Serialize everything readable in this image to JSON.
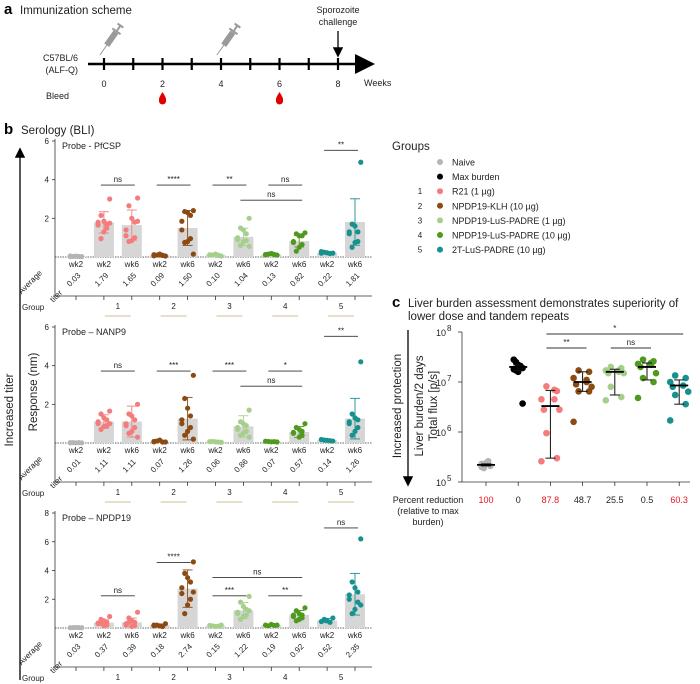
{
  "panel_a": {
    "letter": "a",
    "title": "Immunization scheme",
    "strain_line1": "C57BL/6",
    "strain_line2": "(ALF-Q)",
    "challenge_line1": "Sporozoite",
    "challenge_line2": "challenge",
    "weeks_label": "Weeks",
    "week_ticks": [
      "0",
      "2",
      "4",
      "6",
      "8"
    ],
    "bleed_label": "Bleed",
    "bleed_weeks": [
      2,
      6
    ],
    "immunization_weeks": [
      0,
      4
    ],
    "challenge_week": 8,
    "icons": {
      "immunization": "syringe-icon",
      "bleed": "blood-drop-icon"
    },
    "colors": {
      "syringe": "#9a9a9a",
      "drop": "#e00000"
    }
  },
  "panel_b": {
    "letter": "b",
    "title": "Serology (BLI)",
    "y_arrow_label": "Increased titer",
    "ylabel": "Response (nm)",
    "avg_label_line1": "Average",
    "avg_label_line2": "titer",
    "group_label": "Group",
    "category_labels": [
      "wk2",
      "wk2",
      "wk6",
      "wk2",
      "wk6",
      "wk2",
      "wk6",
      "wk2",
      "wk6",
      "wk2",
      "wk6"
    ],
    "category_groups": [
      0,
      1,
      1,
      2,
      2,
      3,
      3,
      4,
      4,
      5,
      5
    ],
    "group_numbers": [
      "1",
      "2",
      "3",
      "4",
      "5"
    ]
  },
  "legend": {
    "title": "Groups",
    "items": [
      {
        "num": "",
        "label": "Naive",
        "color": "#b5b5b5"
      },
      {
        "num": "",
        "label": "Max burden",
        "color": "#000000"
      },
      {
        "num": "1",
        "label": "R21 (1 µg)",
        "color": "#f47c7c"
      },
      {
        "num": "2",
        "label": "NPDP19-KLH (10 µg)",
        "color": "#8b4a12"
      },
      {
        "num": "3",
        "label": "NPDP19-LuS-PADRE (1 µg)",
        "color": "#a6cf8c"
      },
      {
        "num": "4",
        "label": "NPDP19-LuS-PADRE (10 µg)",
        "color": "#4f9a1e"
      },
      {
        "num": "5",
        "label": "2T-LuS-PADRE (10 µg)",
        "color": "#16918f"
      }
    ]
  },
  "panel_c": {
    "letter": "c",
    "title_line1": "Liver burden assessment demonstrates superiority of",
    "title_line2": "lower dose and tandem repeats",
    "arrow_label": "Increased protection",
    "ylabel_line1": "Liver burden/2 days",
    "ylabel_line2": "Total flux [p/s]",
    "reduction_label_line1": "Percent reduction",
    "reduction_label_line2": "(relative to max",
    "reduction_label_line3": "burden)",
    "highlight_color": "#e8141b"
  },
  "chart_data": [
    {
      "type": "bar+scatter",
      "title": "Probe - PfCSP",
      "ylabel": "Response (nm)",
      "ylim": [
        0,
        6
      ],
      "yticks": [
        "2",
        "4",
        "6"
      ],
      "color_index": [
        0,
        2,
        2,
        3,
        3,
        4,
        4,
        5,
        5,
        6,
        6
      ],
      "average_titer": [
        "0.03",
        "1.79",
        "1.65",
        "0.09",
        "1.50",
        "0.10",
        "1.04",
        "0.13",
        "0.82",
        "0.22",
        "1.81"
      ],
      "means": [
        0.03,
        1.79,
        1.65,
        0.09,
        1.5,
        0.1,
        1.04,
        0.13,
        0.82,
        0.22,
        1.81
      ],
      "sd": [
        0,
        0.55,
        0.78,
        0.05,
        0.9,
        0.05,
        0.45,
        0.04,
        0.3,
        0.06,
        1.2
      ],
      "points": [
        [
          0.02,
          0.03,
          0.04,
          0.03,
          0.05,
          0.02,
          0.03,
          0.04
        ],
        [
          3.0,
          2.15,
          1.85,
          1.7,
          1.8,
          1.65,
          1.5,
          1.3,
          0.95,
          1.75
        ],
        [
          3.05,
          2.65,
          2.0,
          1.8,
          1.4,
          1.1,
          1.0,
          0.85,
          0.8,
          1.85
        ],
        [
          0.05,
          0.1,
          0.15,
          0.08,
          0.12,
          0.06,
          0.09,
          0.1
        ],
        [
          2.4,
          2.35,
          2.3,
          2.15,
          1.85,
          1.4,
          0.95,
          0.8,
          0.75,
          0.15
        ],
        [
          0.05,
          0.1,
          0.15,
          0.08,
          0.12,
          0.1,
          0.09
        ],
        [
          2.0,
          1.5,
          1.4,
          1.2,
          1.0,
          0.9,
          0.85,
          0.8,
          0.6,
          0.55
        ],
        [
          0.1,
          0.15,
          0.18,
          0.12,
          0.13,
          0.1,
          0.14
        ],
        [
          1.25,
          1.2,
          1.1,
          1.1,
          0.8,
          0.75,
          0.65,
          0.5,
          0.3
        ],
        [
          0.2,
          0.25,
          0.22,
          0.18,
          0.28,
          0.2
        ],
        [
          4.9,
          1.7,
          1.6,
          1.3,
          1.3,
          1.2,
          0.8,
          0.75,
          0.5
        ]
      ],
      "significance": [
        {
          "from": 1,
          "to": 2,
          "label": "ns",
          "tier": 1
        },
        {
          "from": 3,
          "to": 4,
          "label": "****",
          "tier": 1
        },
        {
          "from": 5,
          "to": 6,
          "label": "**",
          "tier": 1
        },
        {
          "from": 7,
          "to": 8,
          "label": "ns",
          "tier": 1
        },
        {
          "from": 6,
          "to": 8,
          "label": "ns",
          "tier": 2
        },
        {
          "from": 9,
          "to": 10,
          "label": "**",
          "tier": 3
        }
      ]
    },
    {
      "type": "bar+scatter",
      "title": "Probe – NANP9",
      "ylabel": "Response (nm)",
      "ylim": [
        0,
        6
      ],
      "yticks": [
        "2",
        "4",
        "6"
      ],
      "color_index": [
        0,
        2,
        2,
        3,
        3,
        4,
        4,
        5,
        5,
        6,
        6
      ],
      "average_titer": [
        "0.01",
        "1.11",
        "1.11",
        "0.07",
        "1.26",
        "0.06",
        "0.86",
        "0.07",
        "0.57",
        "0.14",
        "1.26"
      ],
      "means": [
        0.01,
        1.11,
        1.11,
        0.07,
        1.26,
        0.06,
        0.86,
        0.07,
        0.57,
        0.14,
        1.26
      ],
      "sd": [
        0,
        0.35,
        0.8,
        0.05,
        1.1,
        0.04,
        0.55,
        0.03,
        0.28,
        0.05,
        1.05
      ],
      "points": [
        [
          0.01,
          0.02,
          0.01,
          0.02,
          0.01,
          0.02
        ],
        [
          1.65,
          1.5,
          1.3,
          1.2,
          1.1,
          1.0,
          0.9,
          0.85,
          0.7,
          1.0
        ],
        [
          2.0,
          1.5,
          1.4,
          1.2,
          1.0,
          0.9,
          0.8,
          0.6,
          0.5,
          0.3
        ],
        [
          0.05,
          0.1,
          0.15,
          0.05,
          0.08,
          0.06
        ],
        [
          3.5,
          2.3,
          1.8,
          1.4,
          1.2,
          1.0,
          0.8,
          0.6,
          0.4,
          0.2
        ],
        [
          0.04,
          0.08,
          0.06,
          0.05,
          0.07
        ],
        [
          1.7,
          1.1,
          1.0,
          0.9,
          0.8,
          0.7,
          0.6,
          0.5,
          0.4,
          0.3
        ],
        [
          0.05,
          0.08,
          0.06,
          0.07,
          0.09
        ],
        [
          1.0,
          0.8,
          0.7,
          0.6,
          0.55,
          0.5,
          0.4,
          0.3
        ],
        [
          0.1,
          0.15,
          0.14,
          0.12,
          0.18
        ],
        [
          4.2,
          1.5,
          1.3,
          1.2,
          1.1,
          1.0,
          0.8,
          0.6,
          0.4
        ]
      ],
      "significance": [
        {
          "from": 1,
          "to": 2,
          "label": "ns",
          "tier": 1
        },
        {
          "from": 3,
          "to": 4,
          "label": "***",
          "tier": 1
        },
        {
          "from": 5,
          "to": 6,
          "label": "***",
          "tier": 1
        },
        {
          "from": 7,
          "to": 8,
          "label": "*",
          "tier": 1
        },
        {
          "from": 6,
          "to": 8,
          "label": "ns",
          "tier": 2
        },
        {
          "from": 9,
          "to": 10,
          "label": "**",
          "tier": 3
        }
      ]
    },
    {
      "type": "bar+scatter",
      "title": "Probe – NPDP19",
      "ylabel": "Response (nm)",
      "ylim": [
        0,
        8
      ],
      "yticks": [
        "2",
        "4",
        "6",
        "8"
      ],
      "color_index": [
        0,
        2,
        2,
        3,
        3,
        4,
        4,
        5,
        5,
        6,
        6
      ],
      "average_titer": [
        "0.03",
        "0.37",
        "0.39",
        "0.18",
        "2.74",
        "0.15",
        "1.22",
        "0.19",
        "0.92",
        "0.52",
        "2.35"
      ],
      "means": [
        0.03,
        0.37,
        0.39,
        0.18,
        2.74,
        0.15,
        1.22,
        0.19,
        0.92,
        0.52,
        2.35
      ],
      "sd": [
        0,
        0.2,
        0.3,
        0.1,
        1.3,
        0.08,
        0.55,
        0.08,
        0.3,
        0.15,
        1.45
      ],
      "points": [
        [
          0.02,
          0.03,
          0.04,
          0.03,
          0.02
        ],
        [
          0.8,
          0.6,
          0.5,
          0.4,
          0.35,
          0.3,
          0.2,
          0.15,
          0.4
        ],
        [
          1.1,
          0.7,
          0.5,
          0.4,
          0.3,
          0.2,
          0.15,
          0.1,
          0.4
        ],
        [
          0.3,
          0.2,
          0.15,
          0.1,
          0.2,
          0.15
        ],
        [
          4.6,
          3.8,
          3.5,
          3.2,
          2.8,
          2.4,
          2.0,
          1.6,
          1.0,
          2.5
        ],
        [
          0.2,
          0.15,
          0.1,
          0.12,
          0.18
        ],
        [
          2.2,
          1.8,
          1.5,
          1.3,
          1.1,
          1.0,
          0.9,
          0.8,
          0.6,
          1.2
        ],
        [
          0.2,
          0.15,
          0.25,
          0.18,
          0.2
        ],
        [
          1.4,
          1.2,
          1.0,
          0.9,
          0.9,
          0.8,
          0.7,
          0.6,
          0.5
        ],
        [
          0.7,
          0.6,
          0.5,
          0.4,
          0.45
        ],
        [
          6.2,
          3.2,
          2.8,
          2.5,
          2.3,
          2.0,
          1.8,
          1.3,
          1.0,
          1.6
        ]
      ],
      "significance": [
        {
          "from": 1,
          "to": 2,
          "label": "ns",
          "tier": 1
        },
        {
          "from": 3,
          "to": 4,
          "label": "****",
          "tier": 4
        },
        {
          "from": 5,
          "to": 6,
          "label": "***",
          "tier": 1
        },
        {
          "from": 7,
          "to": 8,
          "label": "**",
          "tier": 1
        },
        {
          "from": 5,
          "to": 8,
          "label": "ns",
          "tier": 2
        },
        {
          "from": 9,
          "to": 10,
          "label": "ns",
          "tier": 3
        }
      ]
    },
    {
      "type": "scatter",
      "title": "Liver burden assessment demonstrates superiority of lower dose and tandem repeats",
      "ylabel": "Liver burden/2 days Total flux [p/s]",
      "yscale": "log",
      "ylim": [
        100000,
        100000000
      ],
      "yticks": [
        {
          "base": "10",
          "exp": "5"
        },
        {
          "base": "10",
          "exp": "6"
        },
        {
          "base": "10",
          "exp": "7"
        },
        {
          "base": "10",
          "exp": "8"
        }
      ],
      "color_index": [
        0,
        1,
        2,
        3,
        4,
        5,
        6
      ],
      "percent_reduction": [
        "100",
        "0",
        "87.8",
        "48.7",
        "25.5",
        "0.5",
        "60.3"
      ],
      "reduction_highlight": [
        true,
        false,
        true,
        false,
        false,
        false,
        true
      ],
      "medians": [
        220000,
        20000000,
        3300000,
        10000000,
        16000000,
        20000000,
        8500000
      ],
      "error_range": [
        [
          210000,
          230000
        ],
        [
          17000000,
          22000000
        ],
        [
          300000,
          6800000
        ],
        [
          6500000,
          16000000
        ],
        [
          5500000,
          18000000
        ],
        [
          11000000,
          24000000
        ],
        [
          3600000,
          11000000
        ]
      ],
      "points": [
        [
          200000,
          220000,
          240000,
          260000,
          210000,
          230000,
          190000
        ],
        [
          28000000,
          25000000,
          22000000,
          20000000,
          19000000,
          18000000,
          17000000,
          16000000,
          21000000,
          3700000
        ],
        [
          8200000,
          6600000,
          4500000,
          4500000,
          2800000,
          2800000,
          950000,
          300000,
          260000,
          7000000
        ],
        [
          17000000,
          16000000,
          12000000,
          10000000,
          9000000,
          8000000,
          6500000,
          6500000,
          1600000,
          11000000
        ],
        [
          20000000,
          19000000,
          17000000,
          16000000,
          15000000,
          15000000,
          8000000,
          5000000,
          4300000,
          17000000
        ],
        [
          28000000,
          26000000,
          23000000,
          22000000,
          20000000,
          15000000,
          12000000,
          10000000,
          4800000,
          24000000
        ],
        [
          13500000,
          12000000,
          10000000,
          8500000,
          8000000,
          6400000,
          5500000,
          3600000,
          1700000
        ]
      ],
      "significance": [
        {
          "from": 2,
          "to": 3,
          "label": "**",
          "tier": 1
        },
        {
          "from": 4,
          "to": 5,
          "label": "ns",
          "tier": 1
        },
        {
          "from": 2,
          "to": 6,
          "label": "*",
          "tier": 2
        }
      ]
    }
  ]
}
